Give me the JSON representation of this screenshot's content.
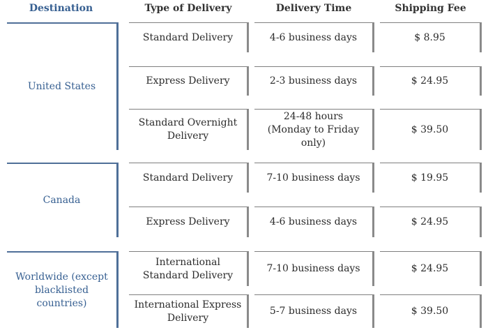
{
  "table": {
    "headers": {
      "destination": "Destination",
      "type": "Type of Delivery",
      "time": "Delivery Time",
      "fee": "Shipping Fee"
    },
    "groups": [
      {
        "destination": "United States",
        "rows": [
          {
            "type": "Standard Delivery",
            "time": "4-6 business days",
            "fee": "$ 8.95"
          },
          {
            "type": "Express Delivery",
            "time": "2-3 business days",
            "fee": "$ 24.95"
          },
          {
            "type": "Standard Overnight Delivery",
            "time": "24-48 hours (Monday to Friday only)",
            "fee": "$ 39.50"
          }
        ]
      },
      {
        "destination": "Canada",
        "rows": [
          {
            "type": "Standard Delivery",
            "time": "7-10 business days",
            "fee": "$ 19.95"
          },
          {
            "type": "Express Delivery",
            "time": "4-6 business days",
            "fee": "$ 24.95"
          }
        ]
      },
      {
        "destination": "Worldwide (except blacklisted countries)",
        "rows": [
          {
            "type": "International Standard Delivery",
            "time": "7-10 business days",
            "fee": "$ 24.95"
          },
          {
            "type": "International Express Delivery",
            "time": "5-7 business days",
            "fee": "$ 39.50"
          }
        ]
      }
    ]
  }
}
